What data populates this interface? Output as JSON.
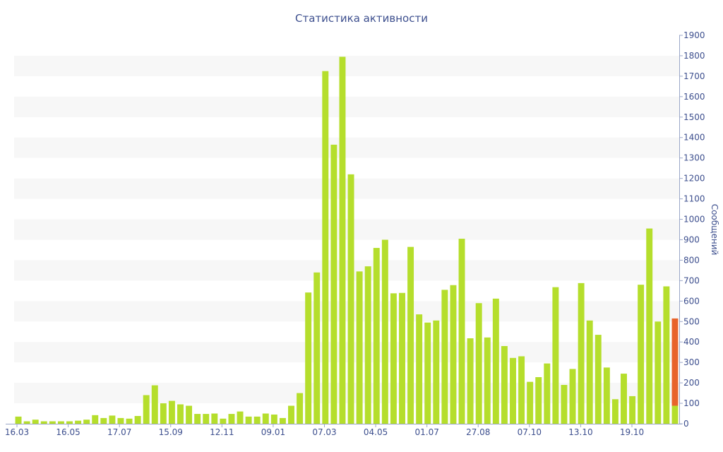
{
  "chart_data": {
    "type": "bar",
    "title": "Статистика активности",
    "xlabel": "",
    "ylabel": "Сообщений",
    "ylim": [
      0,
      1900
    ],
    "y_ticks": [
      0,
      100,
      200,
      300,
      400,
      500,
      600,
      700,
      800,
      900,
      1000,
      1100,
      1200,
      1300,
      1400,
      1500,
      1600,
      1700,
      1800,
      1900
    ],
    "x_tick_labels": [
      "16.03",
      "16.05",
      "17.07",
      "15.09",
      "12.11",
      "09.01",
      "07.03",
      "04.05",
      "01.07",
      "27.08",
      "07.10",
      "13.10",
      "19.10"
    ],
    "y_axis_position": "right",
    "grid": "alternating horizontal bands",
    "bar_color": "#b5de2c",
    "highlight_color": "#e8632b",
    "values": [
      35,
      12,
      20,
      12,
      12,
      12,
      12,
      15,
      20,
      42,
      28,
      40,
      28,
      25,
      38,
      140,
      188,
      100,
      112,
      95,
      88,
      48,
      48,
      50,
      25,
      48,
      60,
      35,
      35,
      50,
      45,
      28,
      88,
      150,
      642,
      740,
      1725,
      1365,
      1795,
      1220,
      745,
      770,
      860,
      900,
      638,
      640,
      865,
      535,
      495,
      505,
      655,
      678,
      905,
      418,
      590,
      422,
      612,
      380,
      322,
      330,
      205,
      228,
      295,
      668,
      190,
      268,
      688,
      505,
      435,
      275,
      120,
      245,
      135,
      680,
      955,
      500,
      672,
      515
    ],
    "highlight": {
      "index": 77,
      "value": 515,
      "lower_part": 88
    }
  }
}
